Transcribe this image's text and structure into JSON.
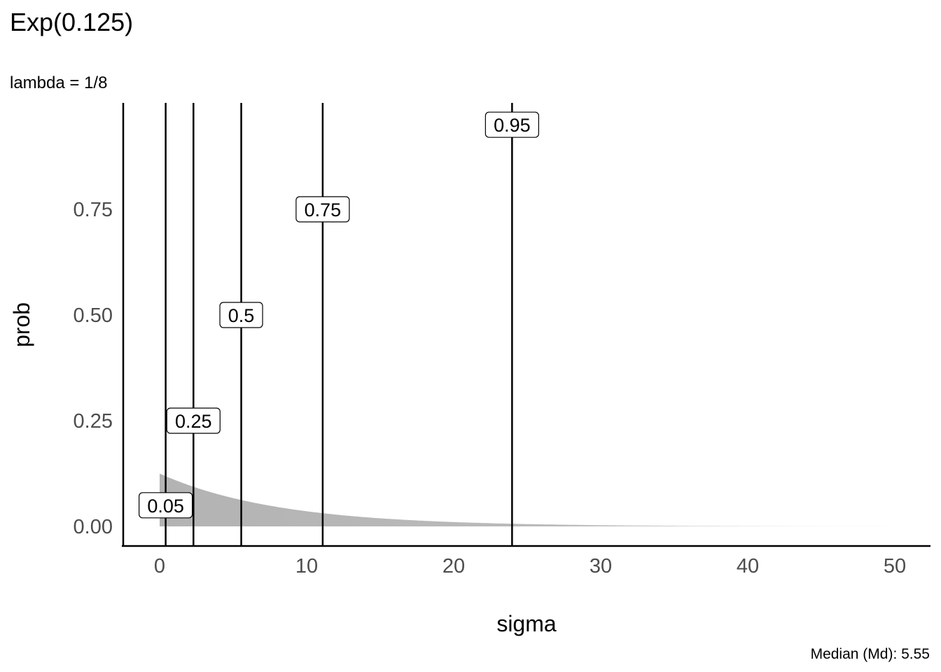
{
  "chart_data": {
    "type": "area",
    "title": "Exp(0.125)",
    "subtitle": "lambda = 1/8",
    "caption": "Median (Md): 5.55",
    "xlabel": "sigma",
    "ylabel": "prob",
    "distribution": "exponential",
    "rate": 0.125,
    "xlim": [
      0,
      50
    ],
    "ylim": [
      0,
      1
    ],
    "x_ticks": [
      "0",
      "10",
      "20",
      "30",
      "40",
      "50"
    ],
    "y_ticks": [
      "0.00",
      "0.25",
      "0.50",
      "0.75"
    ],
    "x_tick_values": [
      0,
      10,
      20,
      30,
      40,
      50
    ],
    "y_tick_values": [
      0,
      0.25,
      0.5,
      0.75
    ],
    "density_fill_color": "#b3b3b3",
    "quantile_lines": [
      {
        "label": "0.05",
        "x": 0.41,
        "y": 0.05
      },
      {
        "label": "0.25",
        "x": 2.3,
        "y": 0.25
      },
      {
        "label": "0.5",
        "x": 5.55,
        "y": 0.5
      },
      {
        "label": "0.75",
        "x": 11.09,
        "y": 0.75
      },
      {
        "label": "0.95",
        "x": 23.97,
        "y": 0.95
      }
    ],
    "grid": false
  }
}
